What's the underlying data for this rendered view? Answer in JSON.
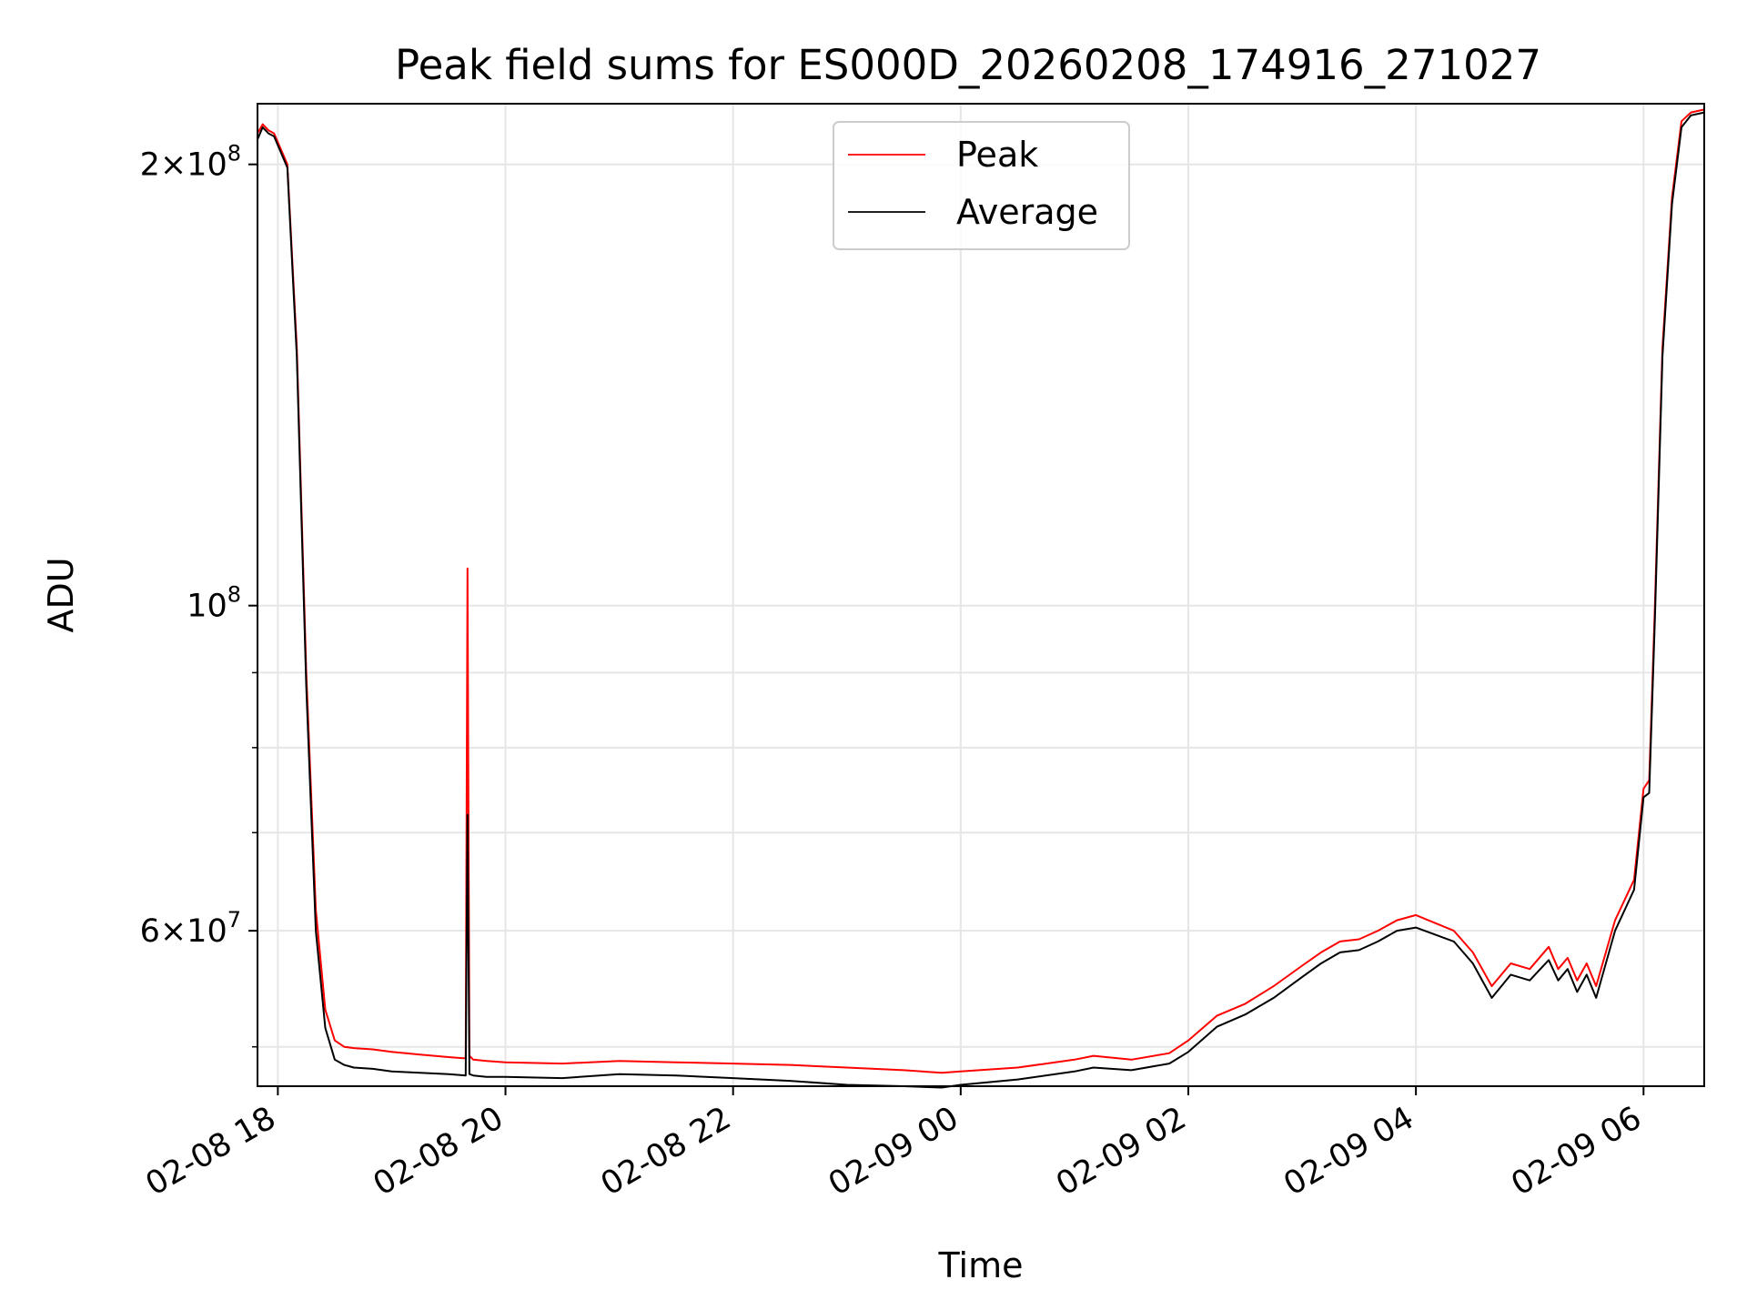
{
  "chart_data": {
    "type": "line",
    "title": "Peak field sums for ES000D_20260208_174916_271027",
    "xlabel": "Time",
    "ylabel": "ADU",
    "yscale": "log",
    "ylim": [
      47000000,
      220000000
    ],
    "xlim": [
      "2026-02-08 17:49:16",
      "2026-02-09 06:32:00"
    ],
    "grid": true,
    "legend_position": "top-center",
    "x_ticks": [
      {
        "time": "2026-02-08 18:00:00",
        "label": "02-08 18"
      },
      {
        "time": "2026-02-08 20:00:00",
        "label": "02-08 20"
      },
      {
        "time": "2026-02-08 22:00:00",
        "label": "02-08 22"
      },
      {
        "time": "2026-02-09 00:00:00",
        "label": "02-09 00"
      },
      {
        "time": "2026-02-09 02:00:00",
        "label": "02-09 02"
      },
      {
        "time": "2026-02-09 04:00:00",
        "label": "02-09 04"
      },
      {
        "time": "2026-02-09 06:00:00",
        "label": "02-09 06"
      }
    ],
    "y_ticks": [
      {
        "value": 60000000,
        "mantissa": "6",
        "exponent": "7"
      },
      {
        "value": 100000000,
        "mantissa": "",
        "exponent": "8"
      },
      {
        "value": 200000000,
        "mantissa": "2",
        "exponent": "8"
      }
    ],
    "y_minor_ticks": [
      50000000,
      70000000,
      80000000,
      90000000
    ],
    "series": [
      {
        "name": "Peak",
        "color": "#ff0000",
        "x": [
          "2026-02-08 17:49:16",
          "2026-02-08 17:52:00",
          "2026-02-08 17:55:00",
          "2026-02-08 17:58:00",
          "2026-02-08 18:05:00",
          "2026-02-08 18:10:00",
          "2026-02-08 18:15:00",
          "2026-02-08 18:20:00",
          "2026-02-08 18:25:00",
          "2026-02-08 18:30:00",
          "2026-02-08 18:35:00",
          "2026-02-08 18:40:00",
          "2026-02-08 18:50:00",
          "2026-02-08 19:00:00",
          "2026-02-08 19:15:00",
          "2026-02-08 19:30:00",
          "2026-02-08 19:39:00",
          "2026-02-08 19:40:00",
          "2026-02-08 19:41:00",
          "2026-02-08 19:43:00",
          "2026-02-08 19:50:00",
          "2026-02-08 20:00:00",
          "2026-02-08 20:30:00",
          "2026-02-08 21:00:00",
          "2026-02-08 21:30:00",
          "2026-02-08 22:00:00",
          "2026-02-08 22:30:00",
          "2026-02-08 23:00:00",
          "2026-02-08 23:30:00",
          "2026-02-08 23:50:00",
          "2026-02-09 00:00:00",
          "2026-02-09 00:30:00",
          "2026-02-09 01:00:00",
          "2026-02-09 01:10:00",
          "2026-02-09 01:30:00",
          "2026-02-09 01:50:00",
          "2026-02-09 02:00:00",
          "2026-02-09 02:15:00",
          "2026-02-09 02:30:00",
          "2026-02-09 02:45:00",
          "2026-02-09 03:00:00",
          "2026-02-09 03:10:00",
          "2026-02-09 03:20:00",
          "2026-02-09 03:30:00",
          "2026-02-09 03:40:00",
          "2026-02-09 03:50:00",
          "2026-02-09 04:00:00",
          "2026-02-09 04:20:00",
          "2026-02-09 04:30:00",
          "2026-02-09 04:40:00",
          "2026-02-09 04:50:00",
          "2026-02-09 05:00:00",
          "2026-02-09 05:10:00",
          "2026-02-09 05:15:00",
          "2026-02-09 05:20:00",
          "2026-02-09 05:25:00",
          "2026-02-09 05:30:00",
          "2026-02-09 05:35:00",
          "2026-02-09 05:45:00",
          "2026-02-09 05:55:00",
          "2026-02-09 06:00:00",
          "2026-02-09 06:03:00",
          "2026-02-09 06:06:00",
          "2026-02-09 06:10:00",
          "2026-02-09 06:15:00",
          "2026-02-09 06:20:00",
          "2026-02-09 06:25:00",
          "2026-02-09 06:32:00"
        ],
        "y": [
          210000000,
          213000000,
          211000000,
          210000000,
          200000000,
          150000000,
          90000000,
          62000000,
          53000000,
          50500000,
          50000000,
          49900000,
          49800000,
          49600000,
          49400000,
          49200000,
          49100000,
          106000000,
          49300000,
          49000000,
          48900000,
          48800000,
          48700000,
          48900000,
          48800000,
          48700000,
          48600000,
          48400000,
          48200000,
          48000000,
          48100000,
          48400000,
          49000000,
          49300000,
          49000000,
          49500000,
          50500000,
          52500000,
          53500000,
          55000000,
          56800000,
          58000000,
          59000000,
          59200000,
          60000000,
          61000000,
          61500000,
          60000000,
          58000000,
          55000000,
          57000000,
          56500000,
          58500000,
          56500000,
          57500000,
          55500000,
          57000000,
          55000000,
          61000000,
          65000000,
          75000000,
          76000000,
          100000000,
          150000000,
          190000000,
          214000000,
          217000000,
          218000000
        ]
      },
      {
        "name": "Average",
        "color": "#000000",
        "x": [
          "2026-02-08 17:49:16",
          "2026-02-08 17:52:00",
          "2026-02-08 17:55:00",
          "2026-02-08 17:58:00",
          "2026-02-08 18:05:00",
          "2026-02-08 18:10:00",
          "2026-02-08 18:15:00",
          "2026-02-08 18:20:00",
          "2026-02-08 18:25:00",
          "2026-02-08 18:30:00",
          "2026-02-08 18:35:00",
          "2026-02-08 18:40:00",
          "2026-02-08 18:50:00",
          "2026-02-08 19:00:00",
          "2026-02-08 19:15:00",
          "2026-02-08 19:30:00",
          "2026-02-08 19:39:00",
          "2026-02-08 19:40:00",
          "2026-02-08 19:41:00",
          "2026-02-08 19:43:00",
          "2026-02-08 19:50:00",
          "2026-02-08 20:00:00",
          "2026-02-08 20:30:00",
          "2026-02-08 21:00:00",
          "2026-02-08 21:30:00",
          "2026-02-08 22:00:00",
          "2026-02-08 22:30:00",
          "2026-02-08 23:00:00",
          "2026-02-08 23:30:00",
          "2026-02-08 23:50:00",
          "2026-02-09 00:00:00",
          "2026-02-09 00:30:00",
          "2026-02-09 01:00:00",
          "2026-02-09 01:10:00",
          "2026-02-09 01:30:00",
          "2026-02-09 01:50:00",
          "2026-02-09 02:00:00",
          "2026-02-09 02:15:00",
          "2026-02-09 02:30:00",
          "2026-02-09 02:45:00",
          "2026-02-09 03:00:00",
          "2026-02-09 03:10:00",
          "2026-02-09 03:20:00",
          "2026-02-09 03:30:00",
          "2026-02-09 03:40:00",
          "2026-02-09 03:50:00",
          "2026-02-09 04:00:00",
          "2026-02-09 04:20:00",
          "2026-02-09 04:30:00",
          "2026-02-09 04:40:00",
          "2026-02-09 04:50:00",
          "2026-02-09 05:00:00",
          "2026-02-09 05:10:00",
          "2026-02-09 05:15:00",
          "2026-02-09 05:20:00",
          "2026-02-09 05:25:00",
          "2026-02-09 05:30:00",
          "2026-02-09 05:35:00",
          "2026-02-09 05:45:00",
          "2026-02-09 05:55:00",
          "2026-02-09 06:00:00",
          "2026-02-09 06:03:00",
          "2026-02-09 06:06:00",
          "2026-02-09 06:10:00",
          "2026-02-09 06:15:00",
          "2026-02-09 06:20:00",
          "2026-02-09 06:25:00",
          "2026-02-09 06:32:00"
        ],
        "y": [
          208000000,
          212000000,
          210000000,
          209000000,
          199000000,
          148000000,
          88000000,
          60000000,
          51500000,
          49000000,
          48600000,
          48400000,
          48300000,
          48100000,
          48000000,
          47900000,
          47800000,
          72000000,
          47900000,
          47800000,
          47700000,
          47700000,
          47600000,
          47900000,
          47800000,
          47600000,
          47400000,
          47100000,
          47000000,
          46900000,
          47100000,
          47500000,
          48100000,
          48400000,
          48200000,
          48700000,
          49600000,
          51600000,
          52600000,
          54000000,
          55800000,
          57000000,
          58000000,
          58200000,
          59000000,
          60000000,
          60300000,
          59000000,
          57000000,
          54000000,
          56000000,
          55500000,
          57300000,
          55500000,
          56500000,
          54500000,
          56000000,
          54000000,
          60000000,
          64000000,
          74000000,
          74500000,
          98000000,
          148000000,
          188000000,
          212000000,
          216000000,
          217000000
        ]
      }
    ]
  }
}
